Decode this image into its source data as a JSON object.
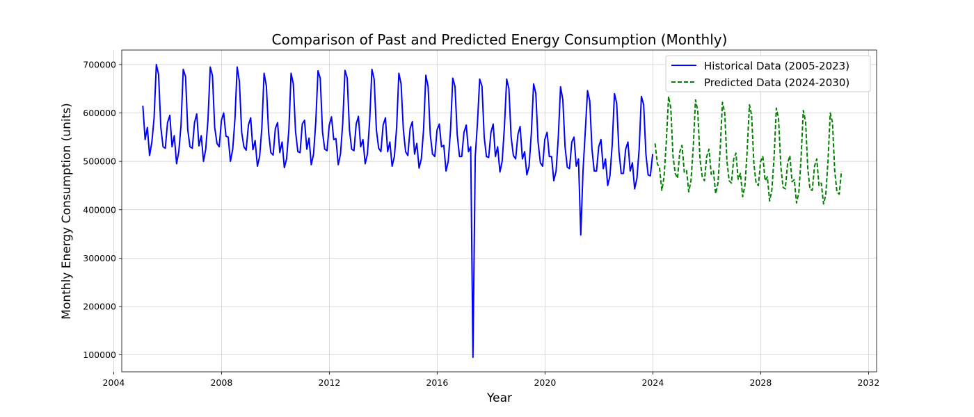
{
  "chart_data": {
    "type": "line",
    "title": "Comparison of Past and Predicted Energy Consumption (Monthly)",
    "xlabel": "Year",
    "ylabel": "Monthly Energy Consumption (units)",
    "xlim": [
      2004.3,
      2032.3
    ],
    "ylim": [
      65000,
      730000
    ],
    "x_ticks": [
      2004,
      2008,
      2012,
      2016,
      2020,
      2024,
      2028,
      2032
    ],
    "x_tick_labels": [
      "2004",
      "2008",
      "2012",
      "2016",
      "2020",
      "2024",
      "2028",
      "2032"
    ],
    "y_ticks": [
      100000,
      200000,
      300000,
      400000,
      500000,
      600000,
      700000
    ],
    "y_tick_labels": [
      "100000",
      "200000",
      "300000",
      "400000",
      "500000",
      "600000",
      "700000"
    ],
    "grid": true,
    "legend_position": "top-right",
    "series": [
      {
        "name": "Historical Data (2005-2023)",
        "color": "#0000ff",
        "style": "solid",
        "start_year": 2005.083,
        "step": 0.0833,
        "values": [
          615000,
          545000,
          570000,
          512000,
          540000,
          590000,
          700000,
          680000,
          570000,
          530000,
          527000,
          580000,
          595000,
          530000,
          553000,
          495000,
          520000,
          575000,
          690000,
          675000,
          565000,
          530000,
          527000,
          580000,
          598000,
          532000,
          553000,
          500000,
          525000,
          585000,
          695000,
          677000,
          570000,
          537000,
          530000,
          585000,
          600000,
          552000,
          550000,
          500000,
          525000,
          587000,
          695000,
          665000,
          560000,
          530000,
          523000,
          575000,
          590000,
          524000,
          543000,
          490000,
          510000,
          570000,
          682000,
          655000,
          560000,
          518000,
          513000,
          568000,
          580000,
          518000,
          540000,
          487000,
          505000,
          565000,
          682000,
          660000,
          562000,
          520000,
          518000,
          577000,
          585000,
          525000,
          548000,
          493000,
          515000,
          582000,
          687000,
          672000,
          560000,
          525000,
          522000,
          575000,
          592000,
          545000,
          547000,
          493000,
          515000,
          578000,
          688000,
          672000,
          565000,
          525000,
          522000,
          577000,
          593000,
          530000,
          545000,
          495000,
          515000,
          585000,
          690000,
          670000,
          565000,
          527000,
          520000,
          575000,
          590000,
          520000,
          540000,
          490000,
          510000,
          570000,
          682000,
          660000,
          565000,
          520000,
          512000,
          568000,
          582000,
          515000,
          537000,
          486000,
          505000,
          565000,
          678000,
          655000,
          555000,
          515000,
          510000,
          565000,
          577000,
          530000,
          533000,
          480000,
          500000,
          565000,
          672000,
          655000,
          555000,
          510000,
          510000,
          560000,
          575000,
          520000,
          530000,
          95000,
          510000,
          580000,
          670000,
          655000,
          550000,
          510000,
          508000,
          560000,
          577000,
          510000,
          530000,
          478000,
          500000,
          570000,
          670000,
          650000,
          550000,
          512000,
          505000,
          555000,
          572000,
          505000,
          520000,
          472000,
          490000,
          560000,
          660000,
          640000,
          540000,
          497000,
          490000,
          545000,
          560000,
          510000,
          510000,
          460000,
          480000,
          550000,
          654000,
          627000,
          530000,
          488000,
          485000,
          540000,
          550000,
          490000,
          505000,
          348000,
          480000,
          560000,
          646000,
          625000,
          525000,
          480000,
          480000,
          530000,
          545000,
          485000,
          505000,
          450000,
          470000,
          535000,
          640000,
          620000,
          520000,
          475000,
          475000,
          525000,
          540000,
          480000,
          497000,
          443000,
          465000,
          525000,
          634000,
          617000,
          515000,
          472000,
          470000,
          515000
        ]
      },
      {
        "name": "Predicted Data (2024-2030)",
        "color": "#008000",
        "style": "dashed",
        "start_year": 2024.083,
        "step": 0.0833,
        "values": [
          537000,
          495000,
          487000,
          440000,
          468000,
          540000,
          634000,
          610000,
          510000,
          475000,
          465000,
          520000,
          533000,
          478000,
          482000,
          437000,
          460000,
          530000,
          627000,
          605000,
          505000,
          468000,
          460000,
          510000,
          525000,
          473000,
          480000,
          433000,
          455000,
          525000,
          622000,
          600000,
          500000,
          460000,
          455000,
          505000,
          517000,
          463000,
          475000,
          427000,
          450000,
          520000,
          617000,
          595000,
          495000,
          455000,
          450000,
          500000,
          510000,
          460000,
          468000,
          418000,
          440000,
          510000,
          610000,
          588000,
          488000,
          446000,
          443000,
          495000,
          512000,
          458000,
          462000,
          414000,
          435000,
          505000,
          605000,
          583000,
          485000,
          442000,
          440000,
          490000,
          505000,
          450000,
          455000,
          412000,
          430000,
          500000,
          600000,
          580000,
          480000,
          437000,
          432000,
          480000
        ]
      }
    ]
  }
}
